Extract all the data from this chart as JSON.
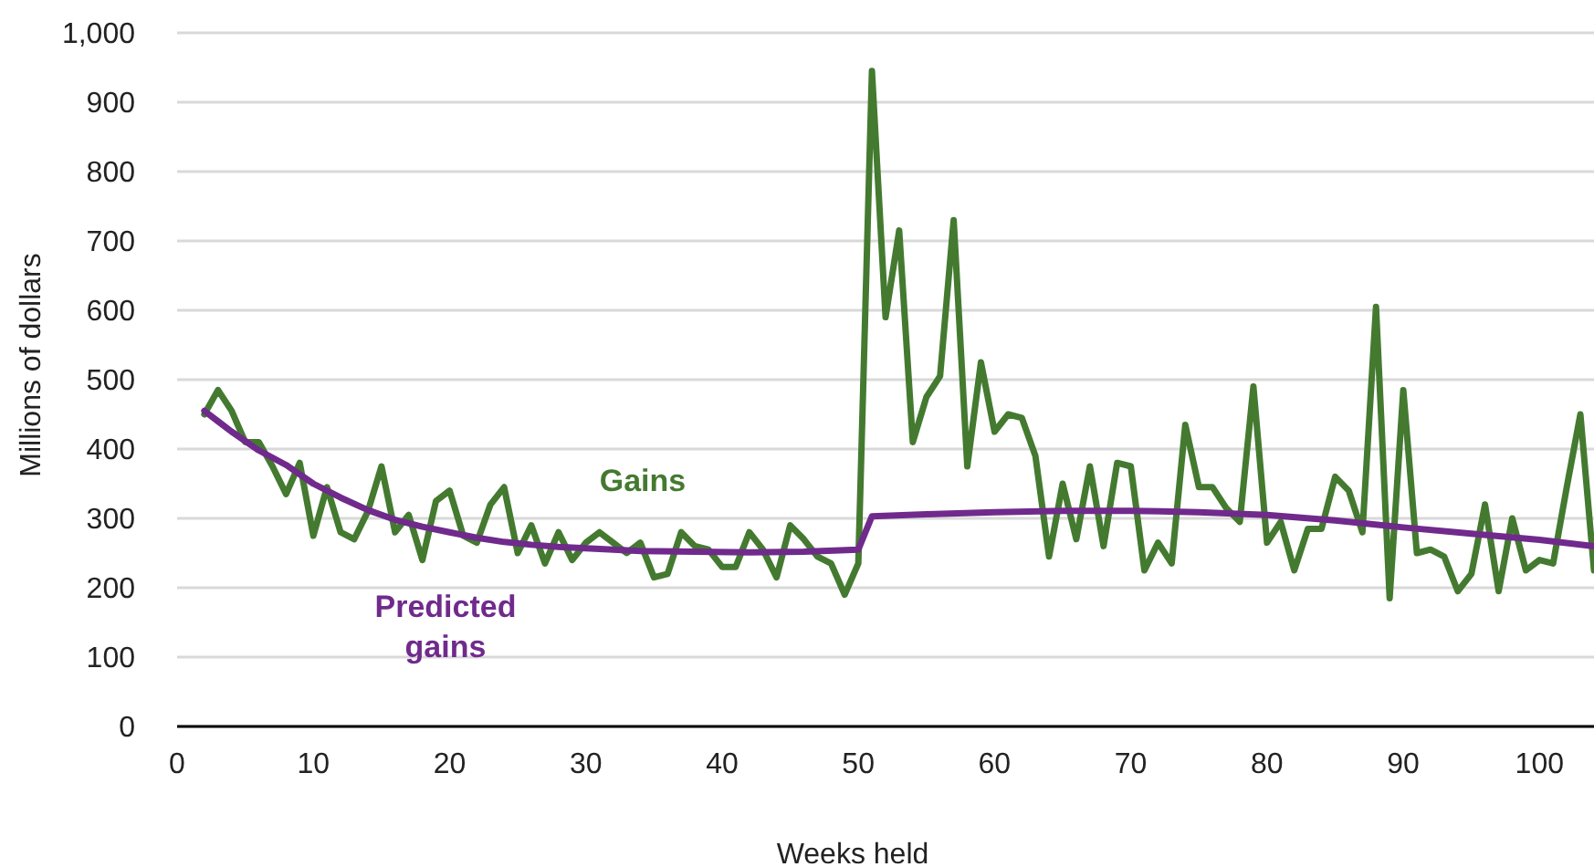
{
  "chart_data": {
    "type": "line",
    "xlabel": "Weeks held",
    "ylabel": "Millions of dollars",
    "xlim": [
      0,
      104
    ],
    "xticks": [
      0,
      10,
      20,
      30,
      40,
      50,
      60,
      70,
      80,
      90,
      100
    ],
    "ylim": [
      0,
      1000
    ],
    "yticks": [
      0,
      100,
      200,
      300,
      400,
      500,
      600,
      700,
      800,
      900,
      {
        "value": 1000,
        "label": "1,000"
      }
    ],
    "grid": "y",
    "series": [
      {
        "name": "Gains",
        "color": "#447a30",
        "x": [
          2,
          3,
          4,
          5,
          6,
          7,
          8,
          9,
          10,
          11,
          12,
          13,
          14,
          15,
          16,
          17,
          18,
          19,
          20,
          21,
          22,
          23,
          24,
          25,
          26,
          27,
          28,
          29,
          30,
          31,
          32,
          33,
          34,
          35,
          36,
          37,
          38,
          39,
          40,
          41,
          42,
          43,
          44,
          45,
          46,
          47,
          48,
          49,
          50,
          51,
          52,
          53,
          54,
          55,
          56,
          57,
          58,
          59,
          60,
          61,
          62,
          63,
          64,
          65,
          66,
          67,
          68,
          69,
          70,
          71,
          72,
          73,
          74,
          75,
          76,
          77,
          78,
          79,
          80,
          81,
          82,
          83,
          84,
          85,
          86,
          87,
          88,
          89,
          90,
          91,
          92,
          93,
          94,
          95,
          96,
          97,
          98,
          99,
          100,
          101,
          102,
          103,
          104
        ],
        "values": [
          450,
          485,
          455,
          410,
          410,
          375,
          335,
          380,
          275,
          345,
          280,
          270,
          310,
          375,
          280,
          305,
          240,
          325,
          340,
          275,
          265,
          320,
          345,
          250,
          290,
          235,
          280,
          240,
          265,
          280,
          265,
          250,
          265,
          215,
          220,
          280,
          260,
          255,
          230,
          230,
          280,
          255,
          215,
          290,
          270,
          245,
          235,
          190,
          235,
          945,
          590,
          715,
          410,
          475,
          505,
          730,
          375,
          525,
          425,
          450,
          445,
          390,
          245,
          350,
          270,
          375,
          260,
          380,
          375,
          225,
          265,
          235,
          435,
          345,
          345,
          315,
          295,
          490,
          265,
          295,
          225,
          285,
          285,
          360,
          340,
          280,
          605,
          185,
          485,
          250,
          255,
          245,
          195,
          220,
          320,
          195,
          300,
          225,
          240,
          235,
          345,
          450,
          225
        ]
      },
      {
        "name": "Predicted gains",
        "color": "#702a8c",
        "x": [
          2,
          3,
          4,
          6,
          8,
          10,
          12,
          14,
          16,
          18,
          20,
          22,
          24,
          26,
          28,
          30,
          34,
          38,
          42,
          46,
          50,
          51,
          55,
          60,
          65,
          70,
          75,
          80,
          85,
          90,
          95,
          100,
          104
        ],
        "values": [
          455,
          440,
          425,
          398,
          377,
          350,
          330,
          312,
          298,
          288,
          280,
          272,
          266,
          262,
          259,
          257,
          253,
          252,
          251,
          252,
          255,
          303,
          306,
          309,
          311,
          311,
          309,
          305,
          297,
          287,
          278,
          269,
          260
        ]
      }
    ]
  }
}
